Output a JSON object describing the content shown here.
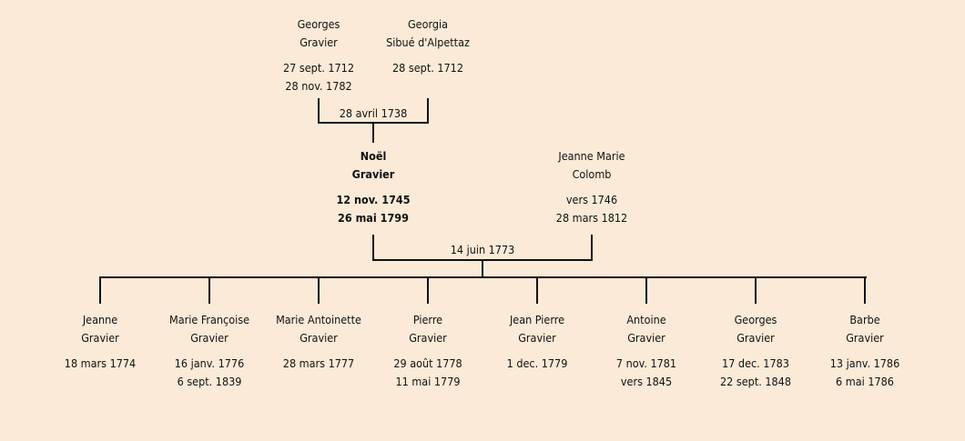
{
  "grandparents": [
    {
      "first": "Georges",
      "last": "Gravier",
      "birth": "27 sept. 1712",
      "death": "28 nov. 1782"
    },
    {
      "first": "Georgia",
      "last": "Sibué d'Alpettaz",
      "birth": "28 sept. 1712",
      "death": ""
    }
  ],
  "grandparents_marriage": "28 avril 1738",
  "parents": [
    {
      "first": "Noël",
      "last": "Gravier",
      "birth": "12 nov. 1745",
      "death": "26 mai 1799",
      "highlighted": true
    },
    {
      "first": "Jeanne Marie",
      "last": "Colomb",
      "birth": "vers 1746",
      "death": "28 mars 1812"
    }
  ],
  "parents_marriage": "14 juin 1773",
  "children": [
    {
      "first": "Jeanne",
      "last": "Gravier",
      "birth": "18 mars 1774",
      "death": ""
    },
    {
      "first": "Marie Françoise",
      "last": "Gravier",
      "birth": "16 janv. 1776",
      "death": "6 sept. 1839"
    },
    {
      "first": "Marie Antoinette",
      "last": "Gravier",
      "birth": "28 mars 1777",
      "death": ""
    },
    {
      "first": "Pierre",
      "last": "Gravier",
      "birth": "29 août 1778",
      "death": "11 mai 1779"
    },
    {
      "first": "Jean Pierre",
      "last": "Gravier",
      "birth": "1 dec. 1779",
      "death": ""
    },
    {
      "first": "Antoine",
      "last": "Gravier",
      "birth": "7 nov. 1781",
      "death": "vers 1845"
    },
    {
      "first": "Georges",
      "last": "Gravier",
      "birth": "17 dec. 1783",
      "death": "22 sept. 1848"
    },
    {
      "first": "Barbe",
      "last": "Gravier",
      "birth": "13 janv. 1786",
      "death": "6 mai 1786"
    }
  ],
  "colors": {
    "background": "#fbead7",
    "line": "#111111"
  }
}
